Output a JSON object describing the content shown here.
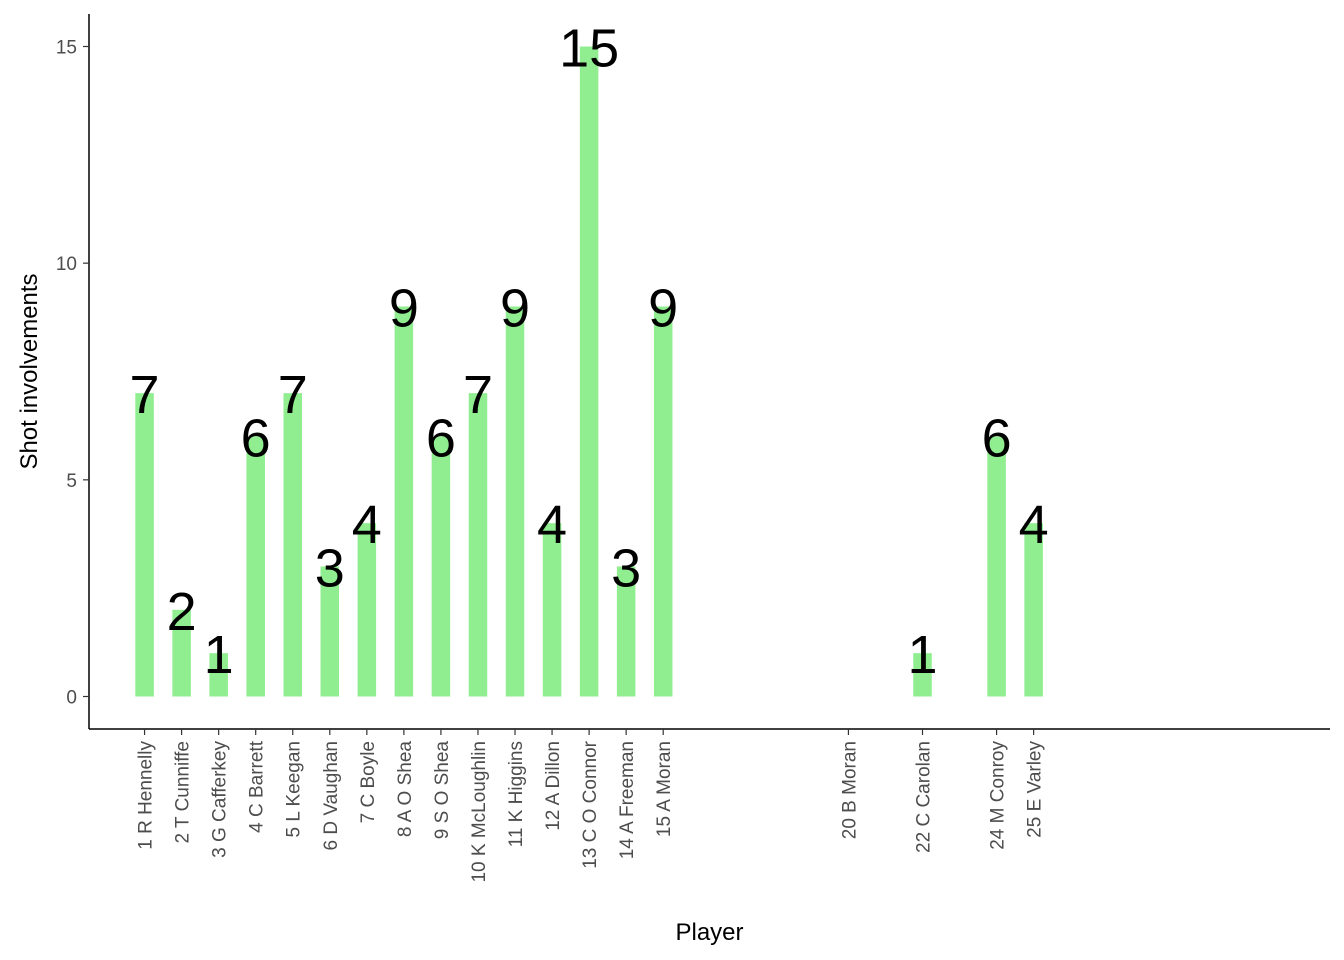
{
  "chart_data": {
    "type": "bar",
    "xlabel": "Player",
    "ylabel": "Shot involvements",
    "ylim": [
      -0.75,
      15.75
    ],
    "yticks": [
      0,
      5,
      10,
      15
    ],
    "grid": false,
    "legend": "none",
    "bar_color": "#90ee90",
    "categories": [
      "1 R Hennelly",
      "2 T Cunniffe",
      "3 G Cafferkey",
      "4 C Barrett",
      "5 L Keegan",
      "6 D Vaughan",
      "7 C Boyle",
      "8 A O Shea",
      "9 S O Shea",
      "10 K McLoughlin",
      "11 K Higgins",
      "12 A Dillon",
      "13 C O Connor",
      "14 A Freeman",
      "15 A Moran",
      "20 B Moran",
      "22 C Carolan",
      "24 M Conroy",
      "25 E Varley"
    ],
    "x": [
      1,
      2,
      3,
      4,
      5,
      6,
      7,
      8,
      9,
      10,
      11,
      12,
      13,
      14,
      15,
      20,
      22,
      24,
      25
    ],
    "xlim": [
      -0.5,
      33
    ],
    "values": [
      7,
      2,
      1,
      6,
      7,
      3,
      4,
      9,
      6,
      7,
      9,
      4,
      15,
      3,
      9,
      0,
      1,
      6,
      4
    ],
    "data_labels": [
      "7",
      "2",
      "1",
      "6",
      "7",
      "3",
      "4",
      "9",
      "6",
      "7",
      "9",
      "4",
      "15",
      "3",
      "9",
      "",
      "1",
      "6",
      "4"
    ]
  }
}
